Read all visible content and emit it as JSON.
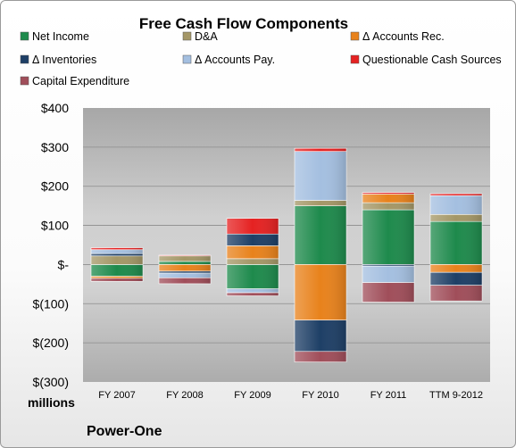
{
  "chart_data": {
    "type": "bar",
    "stacked": true,
    "title": "Free Cash Flow Components",
    "unit_label": "millions",
    "company": "Power-One",
    "categories": [
      "FY 2007",
      "FY 2008",
      "FY 2009",
      "FY 2010",
      "FY 2011",
      "TTM 9-2012"
    ],
    "ylim": [
      -300,
      400
    ],
    "yticks": [
      {
        "value": 400,
        "label": "$400"
      },
      {
        "value": 300,
        "label": "$300"
      },
      {
        "value": 200,
        "label": "$200"
      },
      {
        "value": 100,
        "label": "$100"
      },
      {
        "value": 0,
        "label": "$-"
      },
      {
        "value": -100,
        "label": "$(100)"
      },
      {
        "value": -200,
        "label": "$(200)"
      },
      {
        "value": -300,
        "label": "$(300)"
      }
    ],
    "grid": true,
    "legend_position": "top",
    "series": [
      {
        "name": "Net Income",
        "color": "#1e8a4c",
        "values": [
          -30,
          8,
          -62,
          150,
          140,
          110
        ]
      },
      {
        "name": "D&A",
        "color": "#a49767",
        "values": [
          22,
          14,
          15,
          14,
          18,
          18
        ]
      },
      {
        "name": "Δ Accounts Rec.",
        "color": "#e8821c",
        "values": [
          -5,
          -17,
          33,
          -142,
          22,
          -20
        ]
      },
      {
        "name": "Δ Inventories",
        "color": "#1e3f66",
        "values": [
          6,
          -5,
          30,
          -80,
          -4,
          -33
        ]
      },
      {
        "name": "Δ Accounts Pay.",
        "color": "#a4bfe0",
        "values": [
          10,
          -12,
          -10,
          125,
          -42,
          48
        ]
      },
      {
        "name": "Questionable Cash Sources",
        "color": "#e52222",
        "values": [
          5,
          2,
          40,
          8,
          4,
          5
        ]
      },
      {
        "name": "Capital Expenditure",
        "color": "#a04e5a",
        "values": [
          -8,
          -15,
          -8,
          -27,
          -50,
          -40
        ]
      }
    ]
  }
}
